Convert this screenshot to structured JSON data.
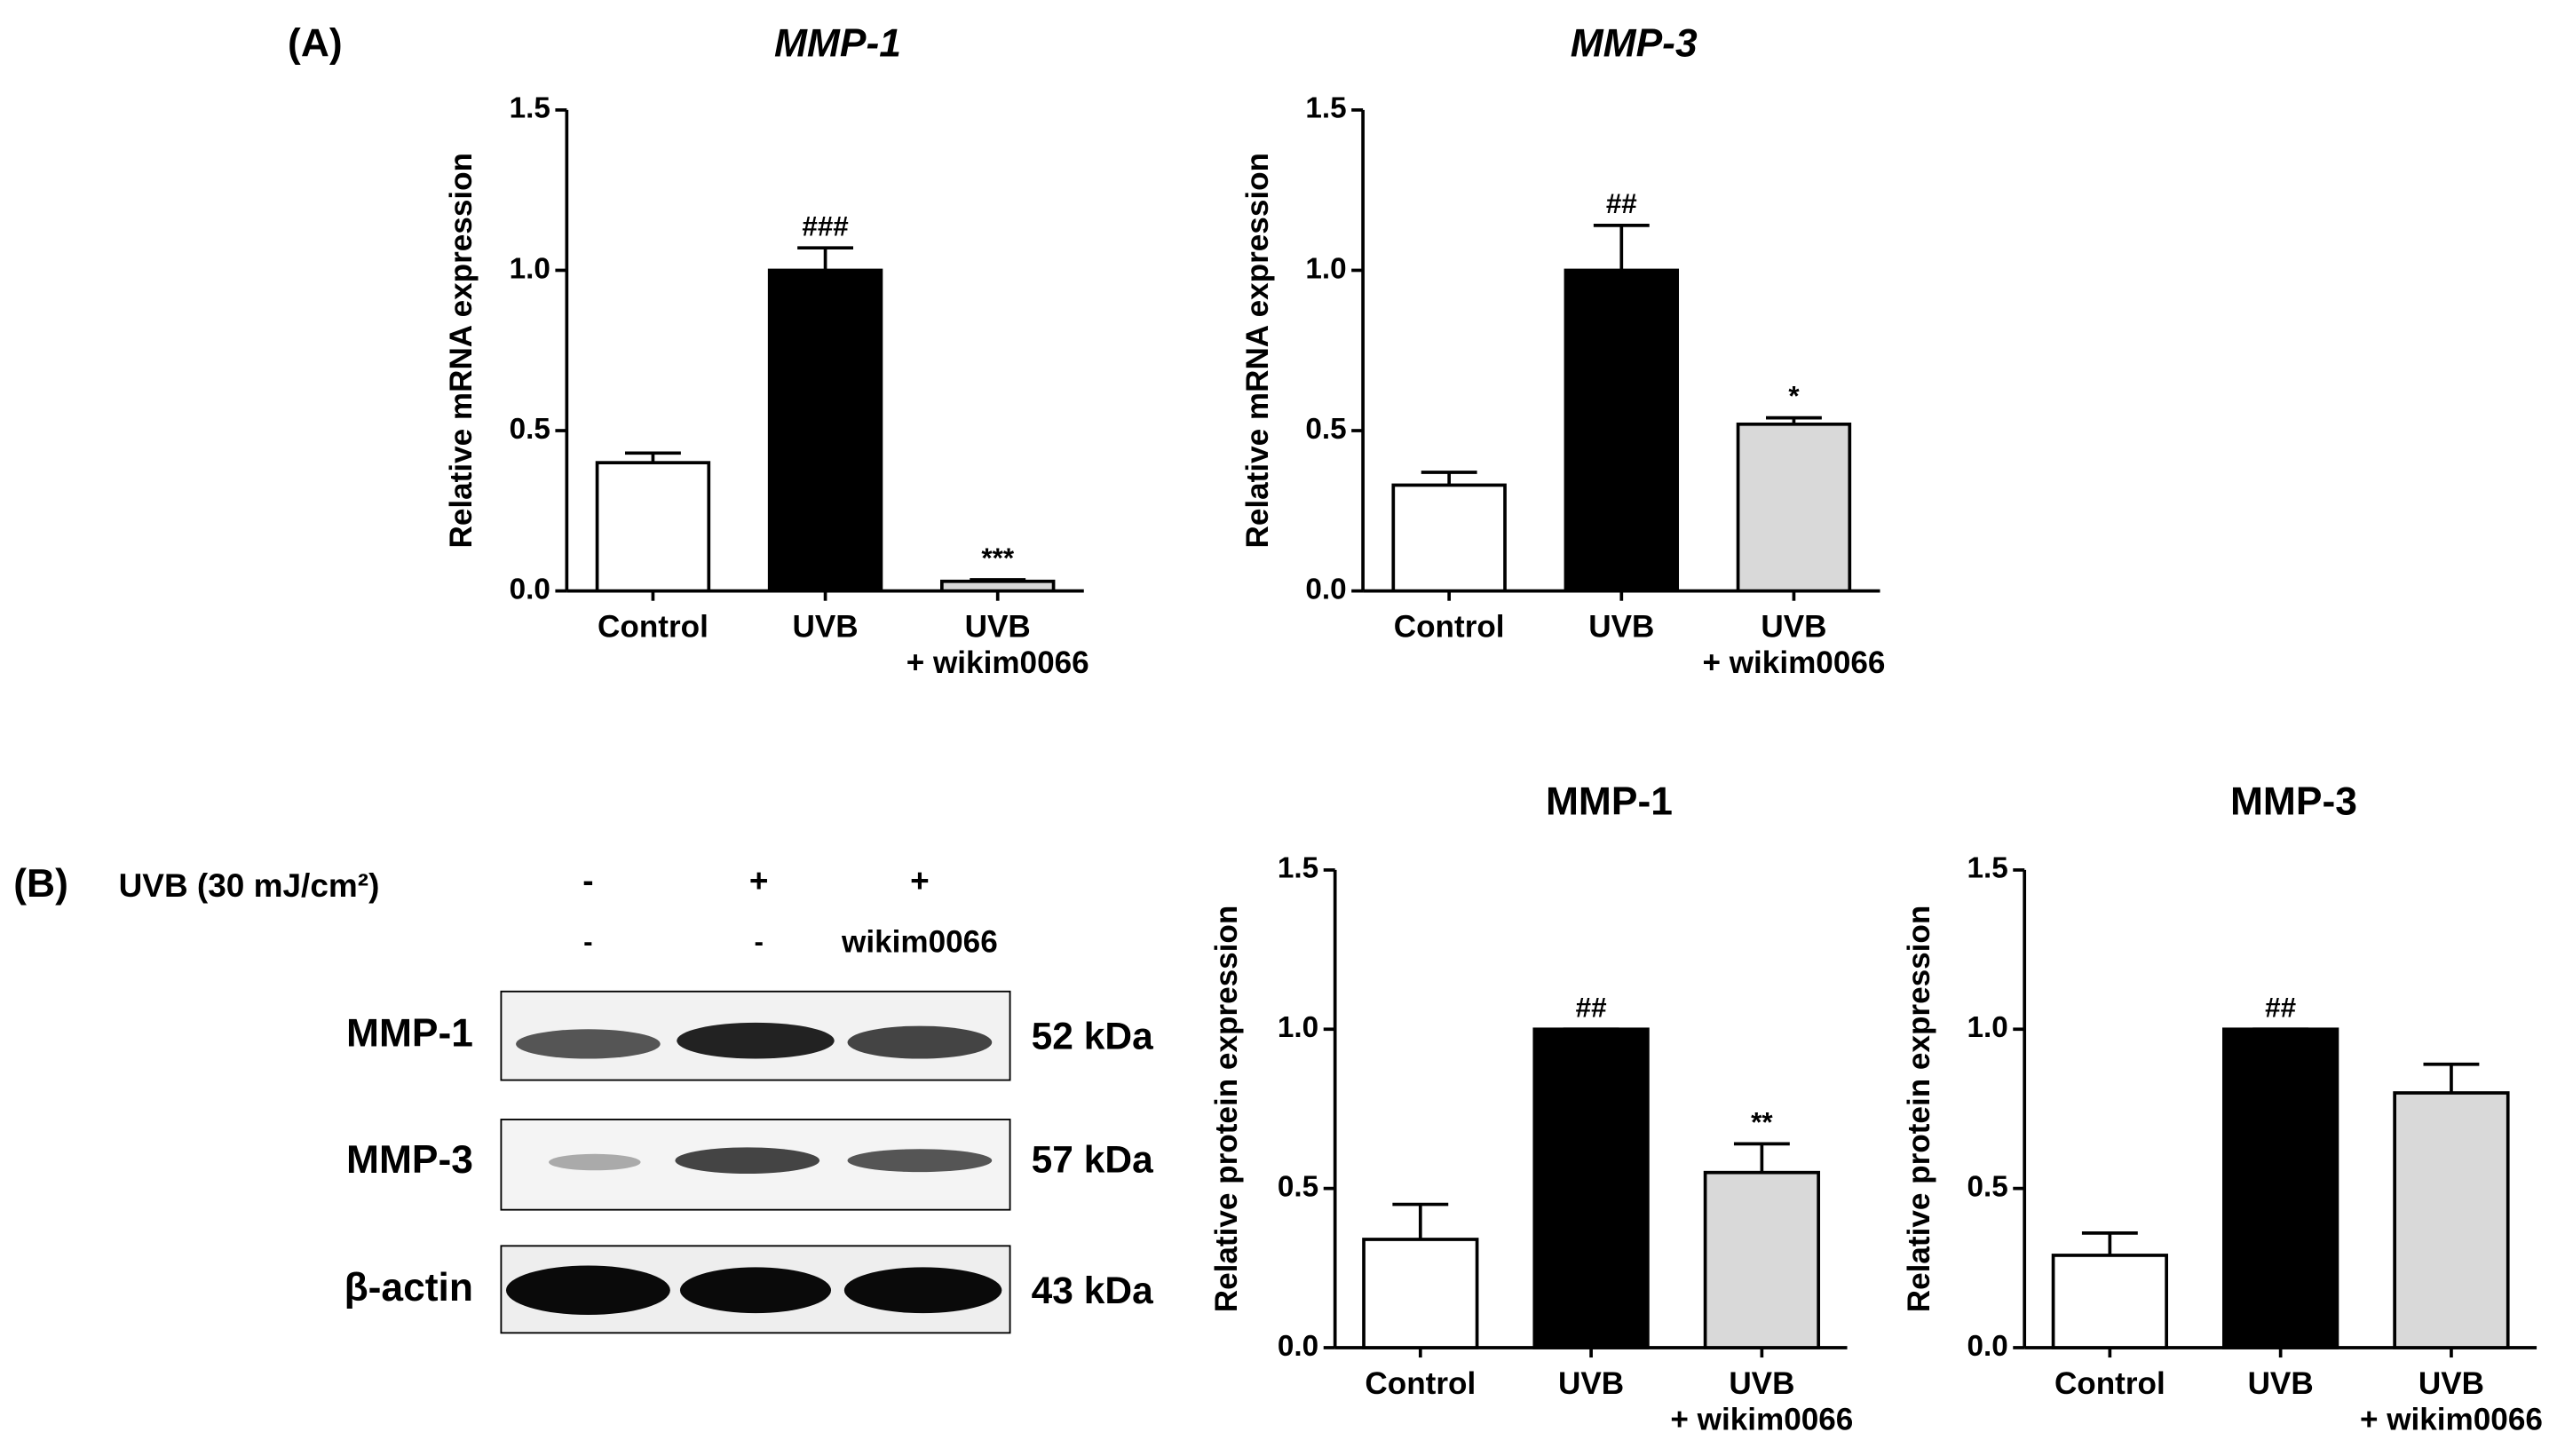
{
  "panel_labels": [
    "(A)",
    "(B)"
  ],
  "blot": {
    "treatment_label": "UVB (30 mJ/cm²)",
    "rows_header": [
      [
        "-",
        "+",
        "+"
      ],
      [
        "-",
        "-",
        "wikim0066"
      ]
    ],
    "bands": [
      {
        "name": "MMP-1",
        "size": "52 kDa"
      },
      {
        "name": "MMP-3",
        "size": "57 kDa"
      },
      {
        "name": "β-actin",
        "size": "43 kDa"
      }
    ]
  },
  "chart_data": [
    {
      "type": "bar",
      "title": "MMP-1",
      "title_italic": true,
      "ylabel": "Relative mRNA expression",
      "categories": [
        [
          "Control"
        ],
        [
          "UVB"
        ],
        [
          "UVB",
          "+ wikim0066"
        ]
      ],
      "values": [
        0.4,
        1.0,
        0.03
      ],
      "errors": [
        0.03,
        0.07,
        0.005
      ],
      "annotations": [
        null,
        "###",
        "***"
      ],
      "colors": [
        "#ffffff",
        "#000000",
        "#d9d9d9"
      ],
      "ylim": [
        0,
        1.5
      ],
      "yticks": [
        {
          "value": 0,
          "label": "0.0"
        },
        0.5,
        {
          "value": 1,
          "label": "1.0"
        },
        1.5
      ]
    },
    {
      "type": "bar",
      "title": "MMP-3",
      "title_italic": true,
      "ylabel": "Relative mRNA expression",
      "categories": [
        [
          "Control"
        ],
        [
          "UVB"
        ],
        [
          "UVB",
          "+ wikim0066"
        ]
      ],
      "values": [
        0.33,
        1.0,
        0.52
      ],
      "errors": [
        0.04,
        0.14,
        0.02
      ],
      "annotations": [
        null,
        "##",
        "*"
      ],
      "colors": [
        "#ffffff",
        "#000000",
        "#d9d9d9"
      ],
      "ylim": [
        0,
        1.5
      ],
      "yticks": [
        {
          "value": 0,
          "label": "0.0"
        },
        0.5,
        {
          "value": 1,
          "label": "1.0"
        },
        1.5
      ]
    },
    {
      "type": "bar",
      "title": "MMP-1",
      "title_italic": false,
      "ylabel": "Relative protein expression",
      "categories": [
        [
          "Control"
        ],
        [
          "UVB"
        ],
        [
          "UVB",
          "+ wikim0066"
        ]
      ],
      "values": [
        0.34,
        1.0,
        0.55
      ],
      "errors": [
        0.11,
        0,
        0.09
      ],
      "annotations": [
        null,
        "##",
        "**"
      ],
      "colors": [
        "#ffffff",
        "#000000",
        "#d9d9d9"
      ],
      "ylim": [
        0,
        1.5
      ],
      "yticks": [
        {
          "value": 0,
          "label": "0.0"
        },
        0.5,
        {
          "value": 1,
          "label": "1.0"
        },
        1.5
      ]
    },
    {
      "type": "bar",
      "title": "MMP-3",
      "title_italic": false,
      "ylabel": "Relative protein expression",
      "categories": [
        [
          "Control"
        ],
        [
          "UVB"
        ],
        [
          "UVB",
          "+ wikim0066"
        ]
      ],
      "values": [
        0.29,
        1.0,
        0.8
      ],
      "errors": [
        0.07,
        0,
        0.09
      ],
      "annotations": [
        null,
        "##",
        null
      ],
      "colors": [
        "#ffffff",
        "#000000",
        "#d9d9d9"
      ],
      "ylim": [
        0,
        1.5
      ],
      "yticks": [
        {
          "value": 0,
          "label": "0.0"
        },
        0.5,
        {
          "value": 1,
          "label": "1.0"
        },
        1.5
      ]
    }
  ]
}
